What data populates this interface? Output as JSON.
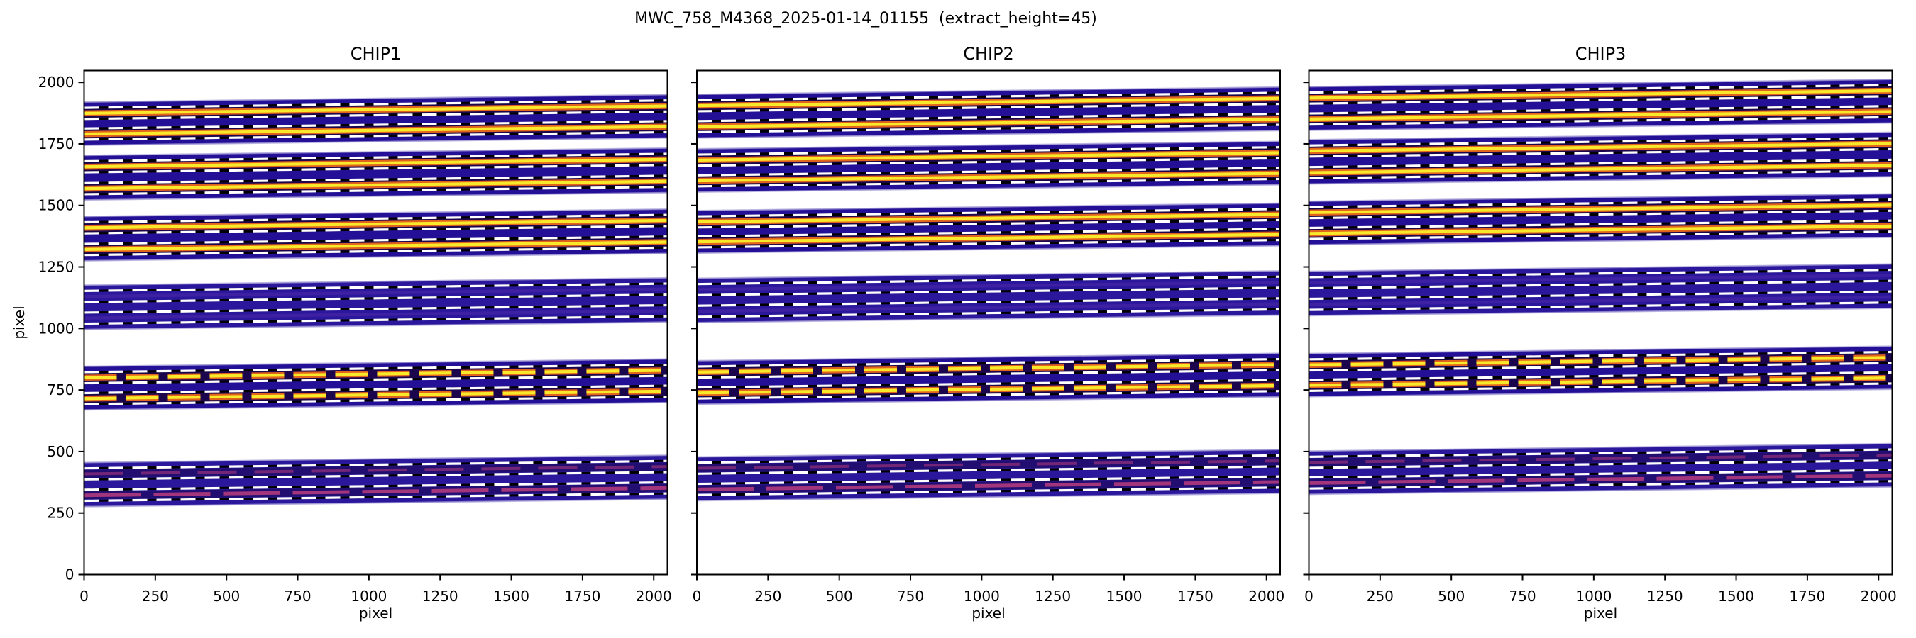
{
  "figure": {
    "suptitle": "MWC_758_M4368_2025-01-14_01155  (extract_height=45)"
  },
  "chart_data": {
    "type": "heatmap",
    "suptitle": "MWC_758_M4368_2025-01-14_01155  (extract_height=45)",
    "description": "Echelle spectral order traces over detector images; extraction windows (white/black dashed, half-width 22.5 px) around each trace center, two traces (nodding positions) per order band, six order bands per chip.",
    "extract_height": 45,
    "xlabel": "pixel",
    "ylabel": "pixel",
    "xlim": [
      0,
      2048
    ],
    "ylim": [
      0,
      2048
    ],
    "xticks": [
      0,
      250,
      500,
      750,
      1000,
      1250,
      1500,
      1750,
      2000
    ],
    "yticks": [
      0,
      250,
      500,
      750,
      1000,
      1250,
      1500,
      1750,
      2000
    ],
    "trace_rise_across_panel": 30,
    "band_half_extent": 46,
    "extraction_half_width": 22.5,
    "panels": [
      {
        "title": "CHIP1",
        "show_ytick_labels": true,
        "orders": [
          {
            "trace_centers_left": [
              1874,
              1790
            ],
            "style": "bright"
          },
          {
            "trace_centers_left": [
              1657,
              1568
            ],
            "style": "bright"
          },
          {
            "trace_centers_left": [
              1409,
              1321
            ],
            "style": "bright"
          },
          {
            "trace_centers_left": [
              1130,
              1042
            ],
            "style": "faint"
          },
          {
            "trace_centers_left": [
              800,
              715
            ],
            "style": "bright_patchy"
          },
          {
            "trace_centers_left": [
              409,
              322
            ],
            "style": "magenta"
          }
        ]
      },
      {
        "title": "CHIP2",
        "show_ytick_labels": false,
        "orders": [
          {
            "trace_centers_left": [
              1905,
              1820
            ],
            "style": "bright"
          },
          {
            "trace_centers_left": [
              1684,
              1600
            ],
            "style": "bright"
          },
          {
            "trace_centers_left": [
              1433,
              1352
            ],
            "style": "bright"
          },
          {
            "trace_centers_left": [
              1158,
              1070
            ],
            "style": "faint"
          },
          {
            "trace_centers_left": [
              823,
              738
            ],
            "style": "bright_patchy"
          },
          {
            "trace_centers_left": [
              432,
              346
            ],
            "style": "magenta"
          }
        ]
      },
      {
        "title": "CHIP3",
        "show_ytick_labels": false,
        "orders": [
          {
            "trace_centers_left": [
              1936,
              1851
            ],
            "style": "bright"
          },
          {
            "trace_centers_left": [
              1721,
              1633
            ],
            "style": "bright"
          },
          {
            "trace_centers_left": [
              1471,
              1386
            ],
            "style": "bright"
          },
          {
            "trace_centers_left": [
              1186,
              1098
            ],
            "style": "faint"
          },
          {
            "trace_centers_left": [
              852,
              769
            ],
            "style": "bright_patchy"
          },
          {
            "trace_centers_left": [
              456,
              372
            ],
            "style": "magenta"
          }
        ]
      }
    ],
    "colors": {
      "band_fill": "#2a179c",
      "band_fill_dark": "#241097",
      "edge_fringe": "#a79fd9",
      "dash_white": "#ffffff",
      "dash_black": "#000000",
      "bright_core": "#f8ea2b",
      "bright_glow": "#e2641c",
      "trace_underlay": "#1b0646",
      "magenta_trace": "#c43f7f",
      "faint_trace": "#7a3bb5",
      "axis_color": "#000000"
    }
  }
}
